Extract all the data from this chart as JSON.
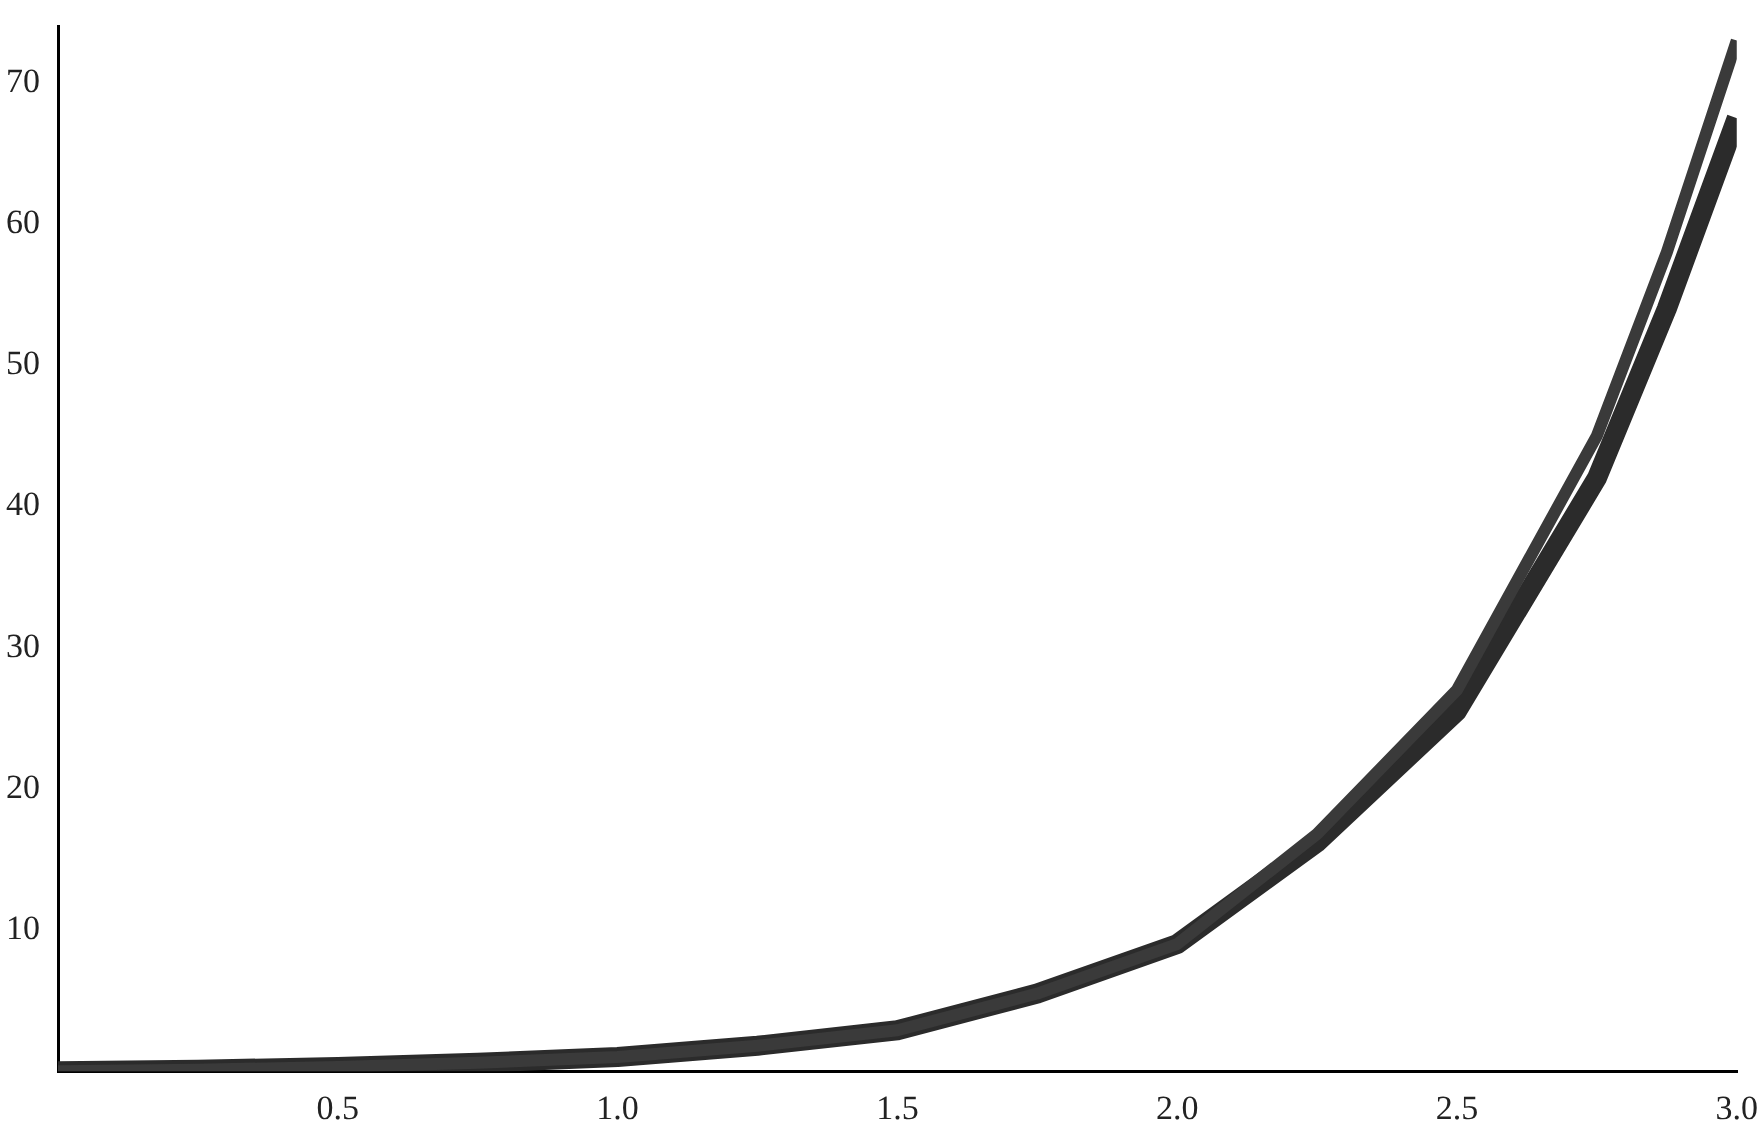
{
  "chart_data": {
    "type": "line",
    "x": [
      0,
      0.25,
      0.5,
      0.75,
      1.0,
      1.25,
      1.5,
      1.75,
      2.0,
      2.25,
      2.5,
      2.75,
      2.875,
      3.0
    ],
    "series": [
      {
        "color": "#3a3a3a",
        "values": [
          0,
          0.1,
          0.3,
          0.6,
          1.0,
          1.8,
          2.9,
          5.5,
          9.0,
          16.8,
          27,
          45,
          58,
          73
        ]
      },
      {
        "color": "#2b2b2b",
        "values": [
          0,
          0.1,
          0.3,
          0.6,
          1.0,
          1.8,
          2.9,
          5.5,
          9.0,
          16.2,
          25.5,
          42,
          54,
          67.5
        ]
      }
    ],
    "xlim": [
      0,
      3.0
    ],
    "xticks": [
      0.5,
      {
        "value": 1.0,
        "label": "1.0"
      },
      1.5,
      {
        "value": 2.0,
        "label": "2.0"
      },
      2.5,
      {
        "value": 3.0,
        "label": "3.0"
      }
    ],
    "ylim": [
      0,
      74
    ],
    "yticks": [
      10,
      20,
      30,
      40,
      50,
      60,
      70
    ],
    "grid": false,
    "legend": false,
    "marker": "none",
    "line_style": "solid"
  }
}
